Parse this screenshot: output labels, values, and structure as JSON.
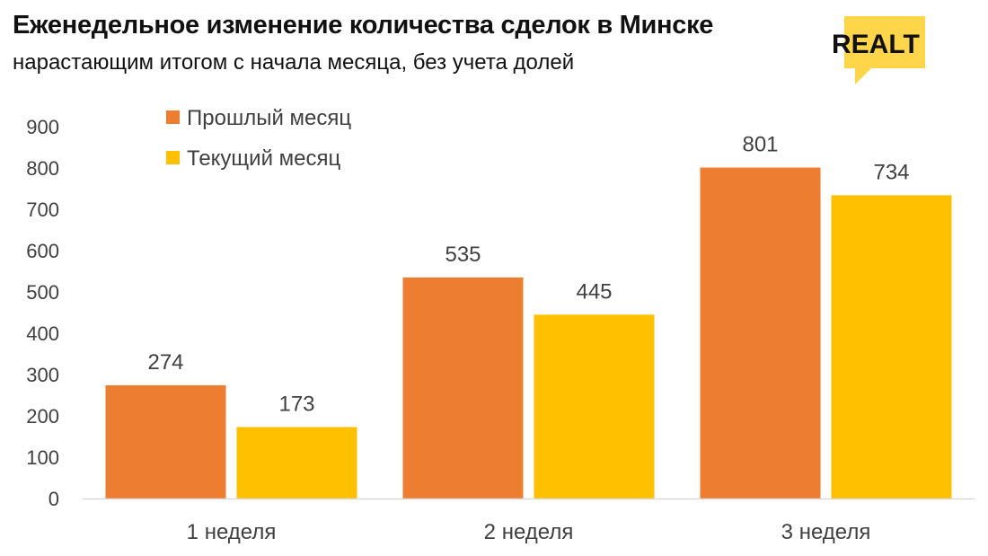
{
  "header": {
    "title": "Еженедельное изменение количества сделок в Минске",
    "subtitle": "нарастающим итогом с начала месяца, без учета долей"
  },
  "logo": {
    "text": "REALT",
    "color": "#FFD54A",
    "icon": "realt-logo"
  },
  "chart_data": {
    "type": "bar",
    "title": "Еженедельное изменение количества сделок в Минске",
    "subtitle": "нарастающим итогом с начала месяца, без учета долей",
    "categories": [
      "1 неделя",
      "2 неделя",
      "3 неделя"
    ],
    "series": [
      {
        "name": "Прошлый месяц",
        "values": [
          274,
          535,
          801
        ],
        "color": "#ED7D31"
      },
      {
        "name": "Текущий месяц",
        "values": [
          173,
          445,
          734
        ],
        "color": "#FFC000"
      }
    ],
    "yticks": [
      "0",
      "100",
      "200",
      "300",
      "400",
      "500",
      "600",
      "700",
      "800",
      "900"
    ],
    "ylim": [
      0,
      900
    ],
    "xlabel": "",
    "ylabel": "",
    "grid": false,
    "data_labels": true,
    "legend_position": "top-left"
  }
}
